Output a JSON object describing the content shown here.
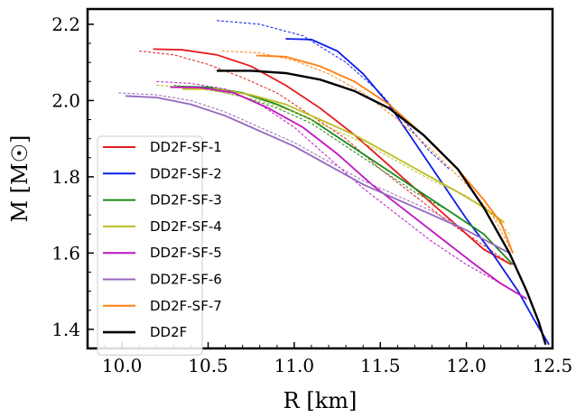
{
  "chart_data": {
    "type": "line",
    "title": "",
    "xlabel": "R [km]",
    "ylabel": "M [M☉]",
    "xlim": [
      9.8,
      12.5
    ],
    "ylim": [
      1.35,
      2.24
    ],
    "xticks": [
      10.0,
      10.5,
      11.0,
      11.5,
      12.0,
      12.5
    ],
    "xtick_labels": [
      "10.0",
      "10.5",
      "11.0",
      "11.5",
      "12.0",
      "12.5"
    ],
    "yticks": [
      1.4,
      1.6,
      1.8,
      2.0,
      2.2
    ],
    "ytick_labels": [
      "1.4",
      "1.6",
      "1.8",
      "2.0",
      "2.2"
    ],
    "grid": false,
    "legend_position": "lower-left",
    "series": [
      {
        "name": "DD2F-SF-1",
        "color": "#e41a1c",
        "solid": [
          [
            10.18,
            2.135
          ],
          [
            10.35,
            2.133
          ],
          [
            10.55,
            2.12
          ],
          [
            10.75,
            2.09
          ],
          [
            10.95,
            2.04
          ],
          [
            11.15,
            1.98
          ],
          [
            11.35,
            1.91
          ],
          [
            11.55,
            1.83
          ],
          [
            11.75,
            1.75
          ],
          [
            11.95,
            1.67
          ],
          [
            12.1,
            1.61
          ],
          [
            12.26,
            1.57
          ]
        ],
        "dashed": [
          [
            10.1,
            2.13
          ],
          [
            10.3,
            2.12
          ],
          [
            10.5,
            2.095
          ],
          [
            10.7,
            2.06
          ],
          [
            10.9,
            2.02
          ],
          [
            11.1,
            1.96
          ],
          [
            11.3,
            1.9
          ],
          [
            11.5,
            1.82
          ],
          [
            11.7,
            1.75
          ],
          [
            11.9,
            1.68
          ],
          [
            12.1,
            1.62
          ],
          [
            12.26,
            1.57
          ]
        ]
      },
      {
        "name": "DD2F-SF-2",
        "color": "#0a1ee6",
        "solid": [
          [
            10.95,
            2.162
          ],
          [
            11.1,
            2.16
          ],
          [
            11.25,
            2.13
          ],
          [
            11.4,
            2.07
          ],
          [
            11.55,
            1.99
          ],
          [
            11.7,
            1.89
          ],
          [
            11.85,
            1.79
          ],
          [
            12.0,
            1.69
          ],
          [
            12.15,
            1.6
          ],
          [
            12.3,
            1.5
          ],
          [
            12.4,
            1.42
          ],
          [
            12.48,
            1.36
          ]
        ],
        "dashed": [
          [
            10.55,
            2.21
          ],
          [
            10.8,
            2.2
          ],
          [
            11.05,
            2.17
          ],
          [
            11.3,
            2.1
          ],
          [
            11.5,
            2.02
          ],
          [
            11.65,
            1.94
          ],
          [
            11.78,
            1.87
          ],
          [
            11.9,
            1.82
          ]
        ]
      },
      {
        "name": "DD2F-SF-3",
        "color": "#1a8a1a",
        "solid": [
          [
            10.32,
            2.037
          ],
          [
            10.5,
            2.035
          ],
          [
            10.7,
            2.02
          ],
          [
            10.9,
            1.99
          ],
          [
            11.1,
            1.95
          ],
          [
            11.3,
            1.89
          ],
          [
            11.5,
            1.83
          ],
          [
            11.7,
            1.77
          ],
          [
            11.9,
            1.71
          ],
          [
            12.1,
            1.65
          ],
          [
            12.27,
            1.57
          ]
        ],
        "dashed": [
          [
            10.3,
            2.04
          ],
          [
            10.5,
            2.03
          ],
          [
            10.7,
            2.01
          ],
          [
            10.9,
            1.98
          ],
          [
            11.1,
            1.94
          ],
          [
            11.3,
            1.88
          ],
          [
            11.5,
            1.82
          ],
          [
            11.7,
            1.76
          ],
          [
            11.9,
            1.71
          ],
          [
            12.1,
            1.65
          ],
          [
            12.27,
            1.57
          ]
        ]
      },
      {
        "name": "DD2F-SF-4",
        "color": "#bcbd22",
        "solid": [
          [
            10.35,
            2.03
          ],
          [
            10.55,
            2.03
          ],
          [
            10.75,
            2.015
          ],
          [
            10.95,
            1.99
          ],
          [
            11.15,
            1.95
          ],
          [
            11.35,
            1.91
          ],
          [
            11.55,
            1.86
          ],
          [
            11.75,
            1.81
          ],
          [
            11.95,
            1.76
          ],
          [
            12.1,
            1.72
          ],
          [
            12.22,
            1.68
          ]
        ],
        "dashed": [
          [
            10.2,
            2.04
          ],
          [
            10.4,
            2.035
          ],
          [
            10.6,
            2.02
          ],
          [
            10.8,
            2.0
          ],
          [
            11.0,
            1.97
          ],
          [
            11.2,
            1.93
          ],
          [
            11.4,
            1.89
          ],
          [
            11.6,
            1.84
          ],
          [
            11.8,
            1.79
          ],
          [
            12.0,
            1.75
          ],
          [
            12.15,
            1.7
          ],
          [
            12.25,
            1.65
          ]
        ]
      },
      {
        "name": "DD2F-SF-5",
        "color": "#c014c0",
        "solid": [
          [
            10.28,
            2.035
          ],
          [
            10.45,
            2.034
          ],
          [
            10.65,
            2.02
          ],
          [
            10.85,
            1.98
          ],
          [
            11.05,
            1.93
          ],
          [
            11.25,
            1.86
          ],
          [
            11.45,
            1.78
          ],
          [
            11.65,
            1.71
          ],
          [
            11.85,
            1.64
          ],
          [
            12.05,
            1.57
          ],
          [
            12.2,
            1.52
          ],
          [
            12.35,
            1.48
          ]
        ],
        "dashed": [
          [
            10.2,
            2.05
          ],
          [
            10.4,
            2.045
          ],
          [
            10.6,
            2.03
          ],
          [
            10.8,
            1.99
          ],
          [
            11.0,
            1.93
          ],
          [
            11.2,
            1.85
          ],
          [
            11.4,
            1.77
          ],
          [
            11.6,
            1.7
          ],
          [
            11.8,
            1.63
          ],
          [
            12.0,
            1.57
          ],
          [
            12.2,
            1.52
          ],
          [
            12.35,
            1.48
          ]
        ]
      },
      {
        "name": "DD2F-SF-6",
        "color": "#9467bd",
        "solid": [
          [
            10.02,
            2.012
          ],
          [
            10.2,
            2.008
          ],
          [
            10.4,
            1.99
          ],
          [
            10.6,
            1.96
          ],
          [
            10.8,
            1.92
          ],
          [
            11.0,
            1.88
          ],
          [
            11.2,
            1.83
          ],
          [
            11.4,
            1.78
          ],
          [
            11.6,
            1.74
          ],
          [
            11.8,
            1.7
          ],
          [
            12.0,
            1.66
          ],
          [
            12.25,
            1.6
          ]
        ],
        "dashed": [
          [
            9.98,
            2.02
          ],
          [
            10.2,
            2.015
          ],
          [
            10.4,
            2.0
          ],
          [
            10.6,
            1.97
          ],
          [
            10.8,
            1.93
          ],
          [
            11.0,
            1.89
          ],
          [
            11.2,
            1.84
          ],
          [
            11.4,
            1.79
          ],
          [
            11.6,
            1.75
          ],
          [
            11.8,
            1.71
          ],
          [
            12.0,
            1.66
          ],
          [
            12.25,
            1.6
          ]
        ]
      },
      {
        "name": "DD2F-SF-7",
        "color": "#ff7f0e",
        "solid": [
          [
            10.78,
            2.118
          ],
          [
            10.95,
            2.115
          ],
          [
            11.15,
            2.09
          ],
          [
            11.35,
            2.05
          ],
          [
            11.55,
            1.99
          ],
          [
            11.75,
            1.91
          ],
          [
            11.95,
            1.82
          ],
          [
            12.1,
            1.74
          ],
          [
            12.2,
            1.68
          ],
          [
            12.27,
            1.6
          ]
        ],
        "dashed": [
          [
            10.58,
            2.13
          ],
          [
            10.8,
            2.125
          ],
          [
            11.0,
            2.105
          ],
          [
            11.2,
            2.07
          ],
          [
            11.4,
            2.02
          ],
          [
            11.6,
            1.95
          ],
          [
            11.8,
            1.87
          ],
          [
            12.0,
            1.78
          ],
          [
            12.15,
            1.7
          ],
          [
            12.27,
            1.6
          ]
        ]
      },
      {
        "name": "DD2F",
        "color": "#000000",
        "solid": [
          [
            10.55,
            2.078
          ],
          [
            10.75,
            2.078
          ],
          [
            10.95,
            2.072
          ],
          [
            11.15,
            2.055
          ],
          [
            11.35,
            2.025
          ],
          [
            11.55,
            1.98
          ],
          [
            11.75,
            1.91
          ],
          [
            11.95,
            1.82
          ],
          [
            12.1,
            1.72
          ],
          [
            12.25,
            1.6
          ],
          [
            12.35,
            1.5
          ],
          [
            12.42,
            1.42
          ],
          [
            12.46,
            1.36
          ]
        ],
        "dashed": []
      }
    ]
  }
}
